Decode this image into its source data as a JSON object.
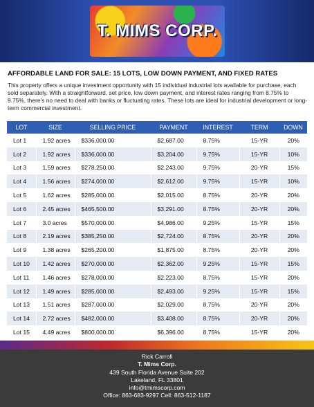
{
  "header": {
    "logo": "T. MIMS CORP."
  },
  "heading": "AFFORDABLE LAND FOR SALE: 15 LOTS, LOW DOWN PAYMENT, AND FIXED RATES",
  "description": "This property offers a unique investment opportunity with 15 individual industrial lots available for purchase, each sold separately. With a straightforward, set price, low down payment, and interest rates ranging from 8.75% to 9.75%, there’s no need to deal with banks or fluctuating rates. These lots are ideal for industrial development or long-term commercial investment.",
  "table": {
    "headers": [
      "LOT",
      "SIZE",
      "SELLING PRICE",
      "PAYMENT",
      "INTEREST",
      "TERM",
      "DOWN"
    ],
    "rows": [
      [
        "Lot 1",
        "1.92 acres",
        "$336,000.00",
        "$2,687.00",
        "8.75%",
        "15-YR",
        "20%"
      ],
      [
        "Lot 2",
        "1.92 acres",
        "$336,000.00",
        "$3,204.00",
        "9.75%",
        "15-YR",
        "10%"
      ],
      [
        "Lot 3",
        "1.59 acres",
        "$278,250.00",
        "$2,243.00",
        "9.75%",
        "20-YR",
        "15%"
      ],
      [
        "Lot 4",
        "1.56 acres",
        "$274,000.00",
        "$2,612.00",
        "9.75%",
        "15-YR",
        "10%"
      ],
      [
        "Lot 5",
        "1.62 acres",
        "$285,000.00",
        "$2,015.00",
        "8.75%",
        "20-YR",
        "20%"
      ],
      [
        "Lot 6",
        "2.45 acres",
        "$465,500.00",
        "$3,291.00",
        "8.75%",
        "20-YR",
        "20%"
      ],
      [
        "Lot 7",
        "3.0 acres",
        "$570,000.00",
        "$4,986.00",
        "9.25%",
        "15-YR",
        "15%"
      ],
      [
        "Lot 8",
        "2.19 acres",
        "$385,250.00",
        "$2,724.00",
        "8.75%",
        "20-YR",
        "20%"
      ],
      [
        "Lot 9",
        "1.38 acres",
        "$265,200.00",
        "$1,875.00",
        "8.75%",
        "20-YR",
        "20%"
      ],
      [
        "Lot 10",
        "1.42 acres",
        "$270,000.00",
        "$2,362.00",
        "9.25%",
        "15-YR",
        "15%"
      ],
      [
        "Lot 11",
        "1.46 acres",
        "$278,000.00",
        "$2,223.00",
        "8.75%",
        "15-YR",
        "20%"
      ],
      [
        "Lot 12",
        "1.49 acres",
        "$285,000.00",
        "$2,493.00",
        "9.25%",
        "15-YR",
        "15%"
      ],
      [
        "Lot 13",
        "1.51 acres",
        "$287,000.00",
        "$2,029.00",
        "8.75%",
        "20-YR",
        "20%"
      ],
      [
        "Lot 14",
        "2.72 acres",
        "$482,000.00",
        "$3,408.00",
        "8.75%",
        "20-YR",
        "20%"
      ],
      [
        "Lot 15",
        "4.49 acres",
        "$800,000.00",
        "$6,396.00",
        "8.75%",
        "15-YR",
        "20%"
      ]
    ]
  },
  "footer": {
    "lines": [
      "Rick Carroll",
      "T. Mims Corp.",
      "439 South Florida Avenue Suite 202",
      "Lakeland, FL 33801",
      "info@tmimscorp.com",
      "Office: 863-683-9297  Cell: 863-512-1187"
    ]
  }
}
